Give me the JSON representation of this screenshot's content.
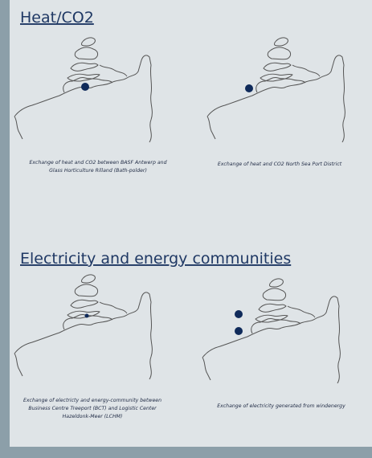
{
  "sections": [
    {
      "title": "Heat/CO2",
      "items": [
        {
          "caption": [
            "Exchange of heat and CO2 between BASF Antwerp and",
            "Glass Horticulture Rilland (Bath-polder)"
          ]
        },
        {
          "caption": [
            "Exchange of heat and CO2 North Sea Port District"
          ]
        }
      ]
    },
    {
      "title": "Electricity and energy communities",
      "items": [
        {
          "caption": [
            "Exchange of electricty and energy-community between",
            "Business Centre Treeport (BCT) and Logistic Center",
            "Hazeldonk-Meer (LCHM)"
          ]
        },
        {
          "caption": [
            "Exchange of electricity generated from windenergy"
          ]
        }
      ]
    }
  ]
}
